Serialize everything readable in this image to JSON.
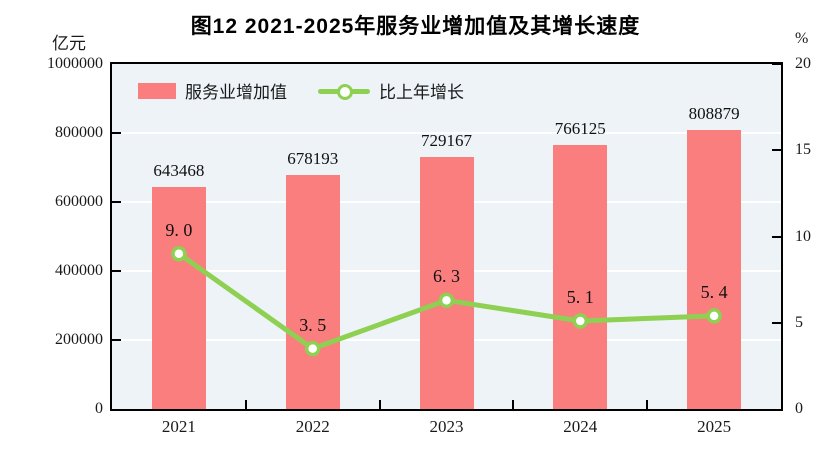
{
  "title": "图12  2021-2025年服务业增加值及其增长速度",
  "left_axis": {
    "unit": "亿元",
    "ticks": [
      "0",
      "200000",
      "400000",
      "600000",
      "800000",
      "1000000"
    ]
  },
  "right_axis": {
    "unit": "%",
    "ticks": [
      "0",
      "5",
      "10",
      "15",
      "20"
    ]
  },
  "legend": [
    {
      "label": "服务业增加值",
      "type": "bar"
    },
    {
      "label": "比上年增长",
      "type": "line"
    }
  ],
  "colors": {
    "bar": "#fa7e7e",
    "line": "#8ed051",
    "marker_fill": "#ffffff",
    "plot_bg": "#edf3f7",
    "grid": "#ffffff",
    "border": "#000000",
    "text": "#1a1a1a"
  },
  "chart_data": {
    "type": "bar",
    "subtype": "bar+line-dual-axis",
    "title": "图12  2021-2025年服务业增加值及其增长速度",
    "categories": [
      "2021",
      "2022",
      "2023",
      "2024",
      "2025"
    ],
    "series": [
      {
        "name": "服务业增加值",
        "type": "bar",
        "axis": "left",
        "unit": "亿元",
        "values": [
          643468,
          678193,
          729167,
          766125,
          808879
        ],
        "labels": [
          "643468",
          "678193",
          "729167",
          "766125",
          "808879"
        ]
      },
      {
        "name": "比上年增长",
        "type": "line",
        "axis": "right",
        "unit": "%",
        "values": [
          9.0,
          3.5,
          6.3,
          5.1,
          5.4
        ],
        "labels": [
          "9. 0",
          "3. 5",
          "6. 3",
          "5. 1",
          "5. 4"
        ]
      }
    ],
    "left_ylim": [
      0,
      1000000
    ],
    "left_tick_step": 200000,
    "right_ylim": [
      0,
      20
    ],
    "right_tick_step": 5,
    "grid": true,
    "legend_position": "top-left-inside"
  }
}
